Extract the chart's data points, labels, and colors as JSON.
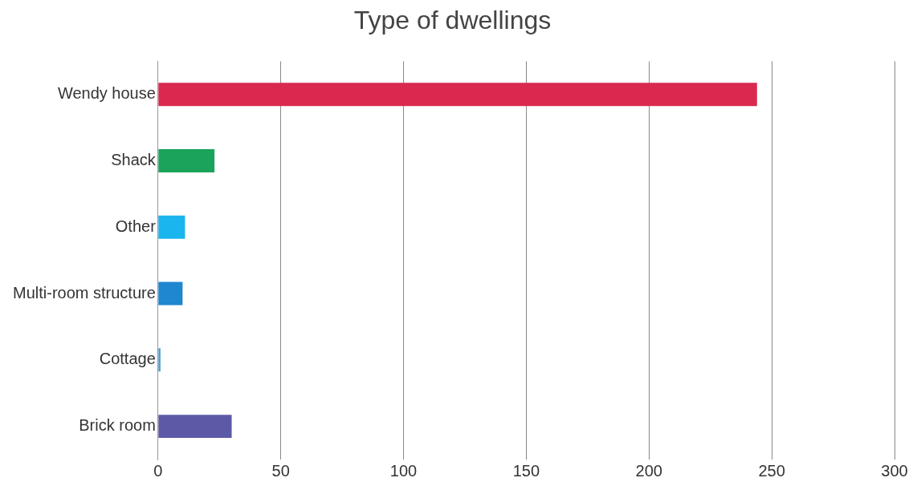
{
  "chart_data": {
    "type": "bar",
    "title": "Type of dwellings",
    "orientation": "horizontal",
    "categories": [
      "Wendy house",
      "Shack",
      "Other",
      "Multi-room structure",
      "Cottage",
      "Brick room"
    ],
    "values": [
      244,
      23,
      11,
      10,
      1,
      30
    ],
    "colors": [
      "#d9294f",
      "#1ba35b",
      "#1ab5ee",
      "#1f86d0",
      "#4d9fd4",
      "#5c5aa6"
    ],
    "xlim": [
      0,
      300
    ],
    "xticks": [
      0,
      50,
      100,
      150,
      200,
      250,
      300
    ],
    "grid": "x"
  }
}
